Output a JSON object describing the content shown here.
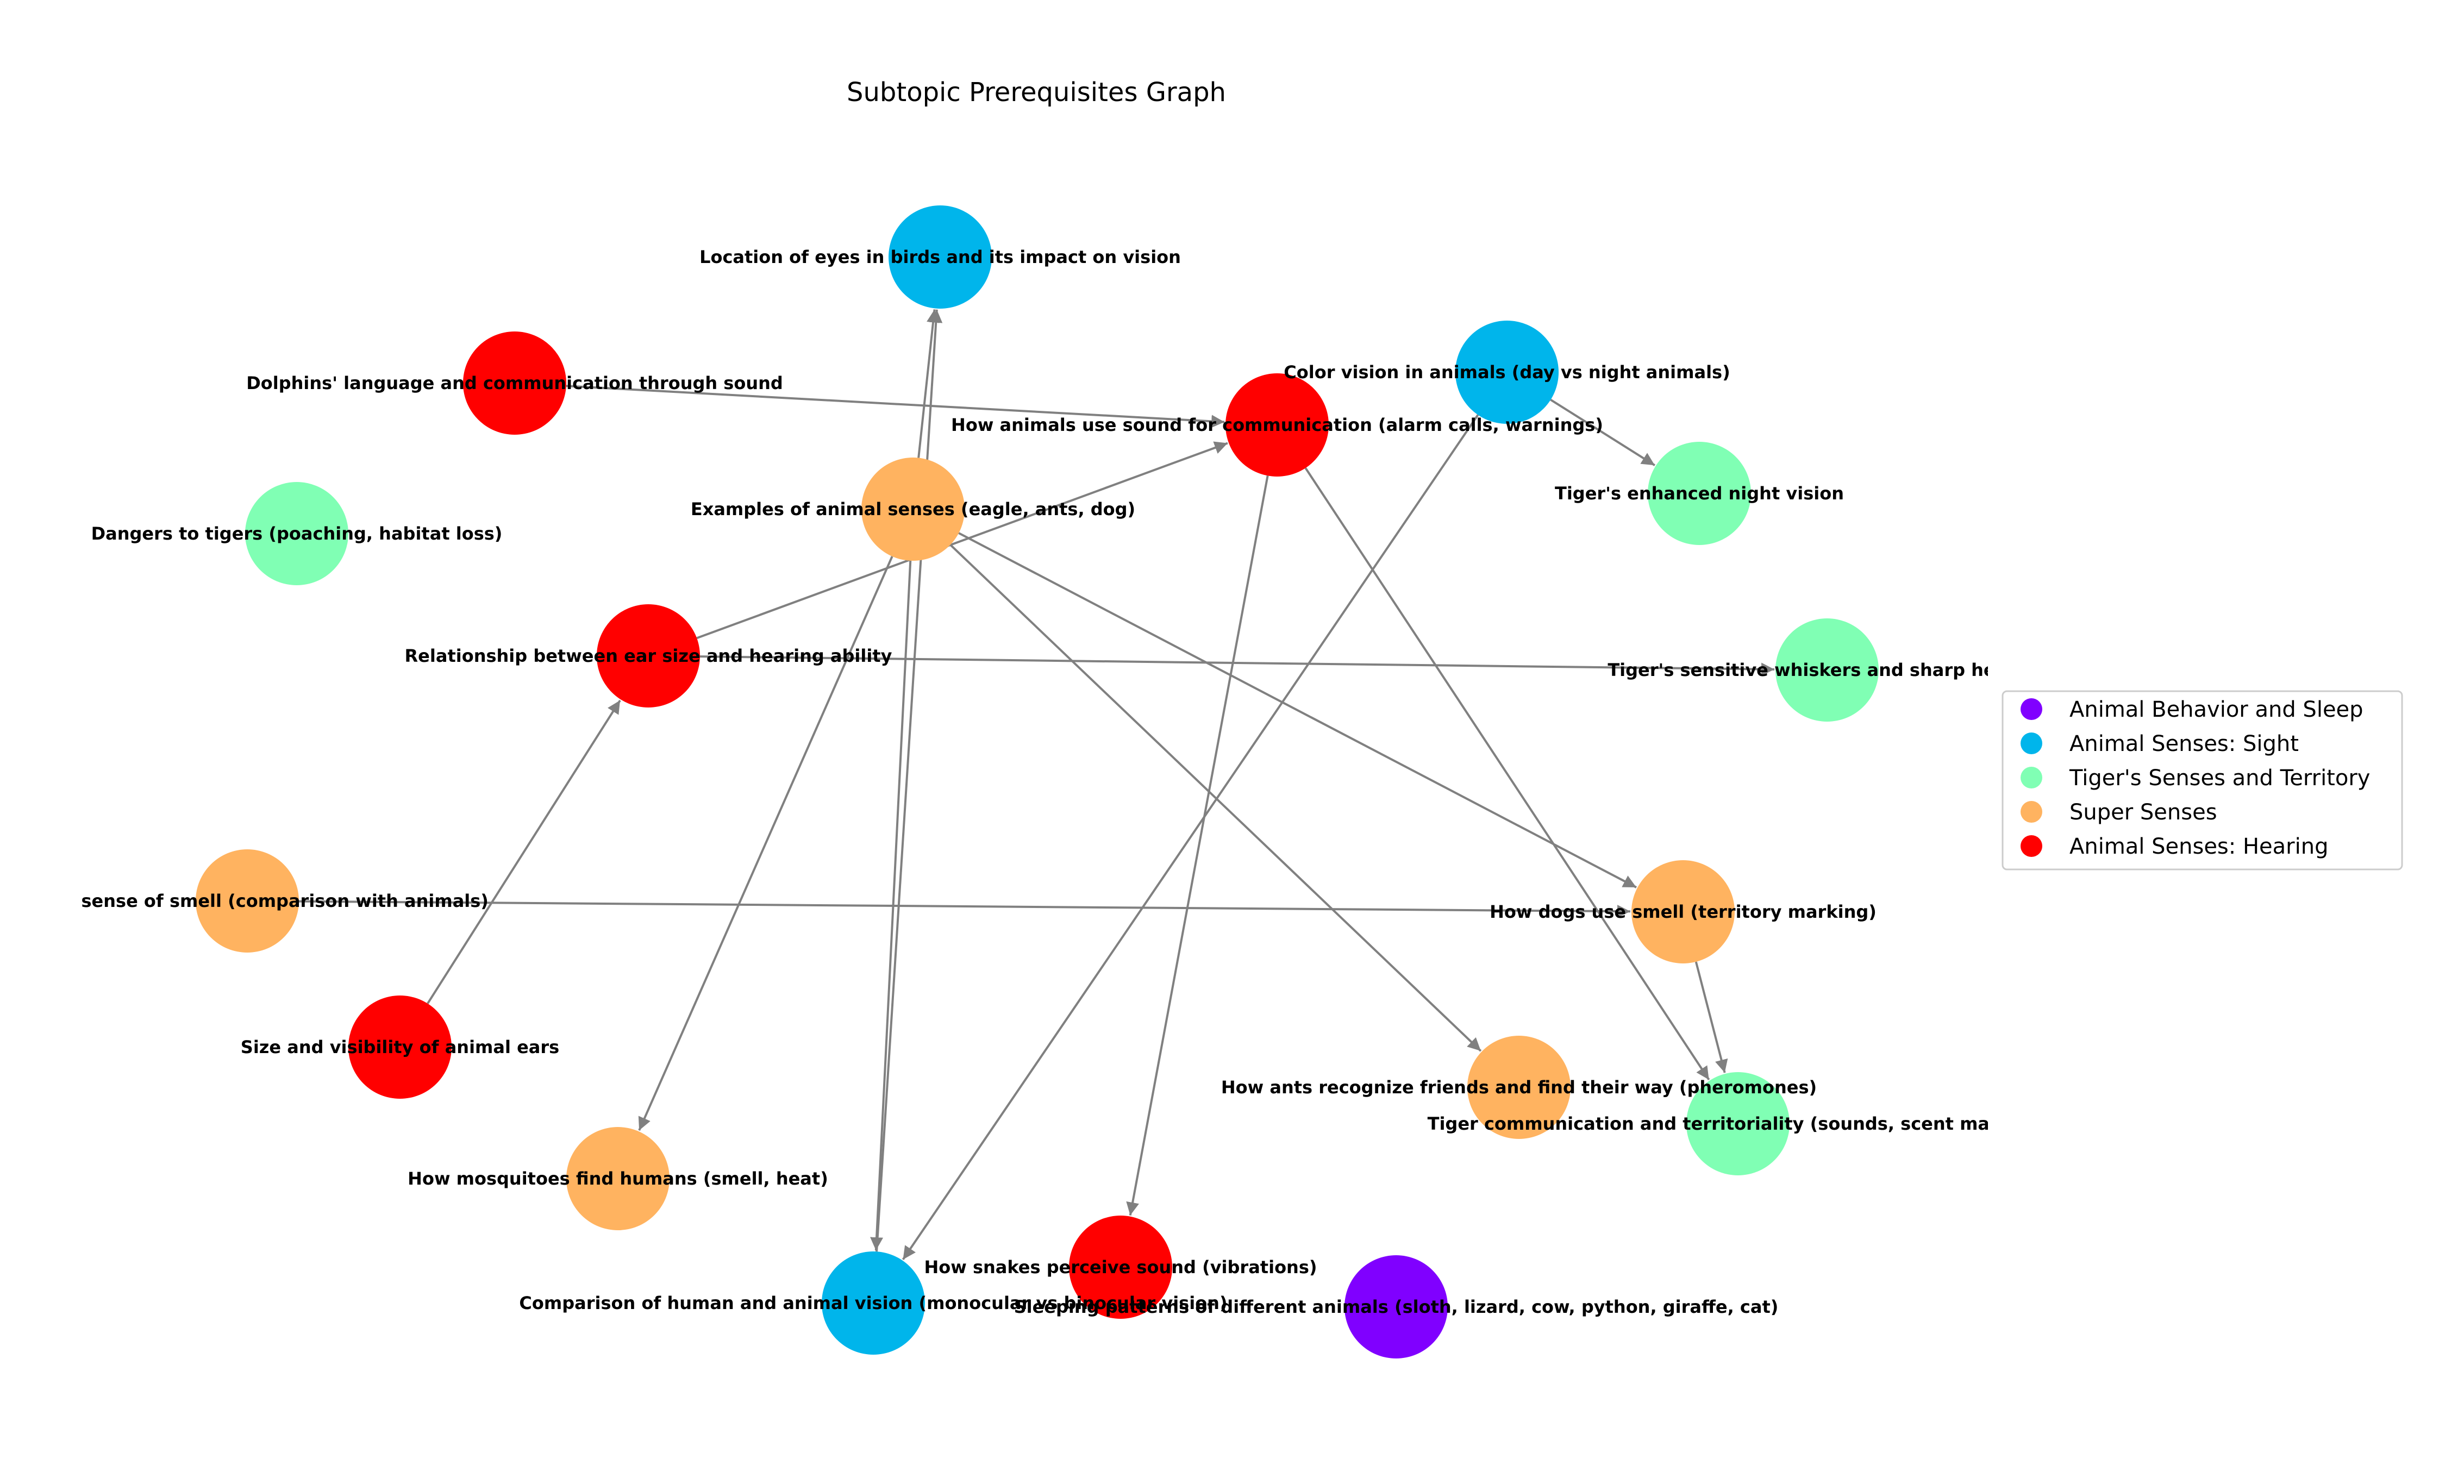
{
  "title": "Subtopic Prerequisites Graph",
  "categories": [
    {
      "id": "sleep",
      "name": "Animal Behavior and Sleep",
      "color": "#8000ff"
    },
    {
      "id": "sight",
      "name": "Animal Senses: Sight",
      "color": "#00b5eb"
    },
    {
      "id": "tiger",
      "name": "Tiger's Senses and Territory",
      "color": "#80ffb4"
    },
    {
      "id": "super",
      "name": "Super Senses",
      "color": "#ffb360"
    },
    {
      "id": "hearing",
      "name": "Animal Senses: Hearing",
      "color": "#ff0000"
    }
  ],
  "nodes": [
    {
      "id": "eyes_birds",
      "label": "Location of eyes in birds and its impact on vision",
      "category": "sight"
    },
    {
      "id": "dolphins",
      "label": "Dolphins' language and communication through sound",
      "category": "hearing"
    },
    {
      "id": "color_vision",
      "label": "Color vision in animals (day vs night animals)",
      "category": "sight"
    },
    {
      "id": "sound_comm",
      "label": "How animals use sound for communication (alarm calls, warnings)",
      "category": "hearing"
    },
    {
      "id": "night_vision",
      "label": "Tiger's enhanced night vision",
      "category": "tiger"
    },
    {
      "id": "dangers",
      "label": "Dangers to tigers (poaching, habitat loss)",
      "category": "tiger"
    },
    {
      "id": "examples",
      "label": "Examples of animal senses (eagle, ants, dog)",
      "category": "super"
    },
    {
      "id": "ear_size",
      "label": "Relationship between ear size and hearing ability",
      "category": "hearing"
    },
    {
      "id": "whiskers",
      "label": "Tiger's sensitive whiskers and sharp hearing",
      "category": "tiger"
    },
    {
      "id": "smell",
      "label": "Human sense of smell (comparison with animals)",
      "category": "super"
    },
    {
      "id": "dogs",
      "label": "How dogs use smell (territory marking)",
      "category": "super"
    },
    {
      "id": "ears_visibility",
      "label": "Size and visibility of animal ears",
      "category": "hearing"
    },
    {
      "id": "ants",
      "label": "How ants recognize friends and find their way (pheromones)",
      "category": "super"
    },
    {
      "id": "tiger_comm",
      "label": "Tiger communication and territoriality (sounds, scent marking)",
      "category": "tiger"
    },
    {
      "id": "mosquitoes",
      "label": "How mosquitoes find humans (smell, heat)",
      "category": "super"
    },
    {
      "id": "snakes",
      "label": "How snakes perceive sound (vibrations)",
      "category": "hearing"
    },
    {
      "id": "human_vision",
      "label": "Comparison of human and animal vision (monocular vs binocular vision)",
      "category": "sight"
    },
    {
      "id": "sleeping",
      "label": "Sleeping patterns of different animals (sloth, lizard, cow, python, giraffe, cat)",
      "category": "sleep"
    }
  ],
  "edges": [
    {
      "from": "dolphins",
      "to": "sound_comm"
    },
    {
      "from": "examples",
      "to": "eyes_birds"
    },
    {
      "from": "human_vision",
      "to": "eyes_birds"
    },
    {
      "from": "examples",
      "to": "mosquitoes"
    },
    {
      "from": "examples",
      "to": "human_vision"
    },
    {
      "from": "examples",
      "to": "ants"
    },
    {
      "from": "examples",
      "to": "dogs"
    },
    {
      "from": "ear_size",
      "to": "sound_comm"
    },
    {
      "from": "ear_size",
      "to": "whiskers"
    },
    {
      "from": "ears_visibility",
      "to": "ear_size"
    },
    {
      "from": "smell",
      "to": "dogs"
    },
    {
      "from": "dogs",
      "to": "tiger_comm"
    },
    {
      "from": "sound_comm",
      "to": "tiger_comm"
    },
    {
      "from": "sound_comm",
      "to": "snakes"
    },
    {
      "from": "color_vision",
      "to": "night_vision"
    },
    {
      "from": "color_vision",
      "to": "human_vision"
    }
  ]
}
